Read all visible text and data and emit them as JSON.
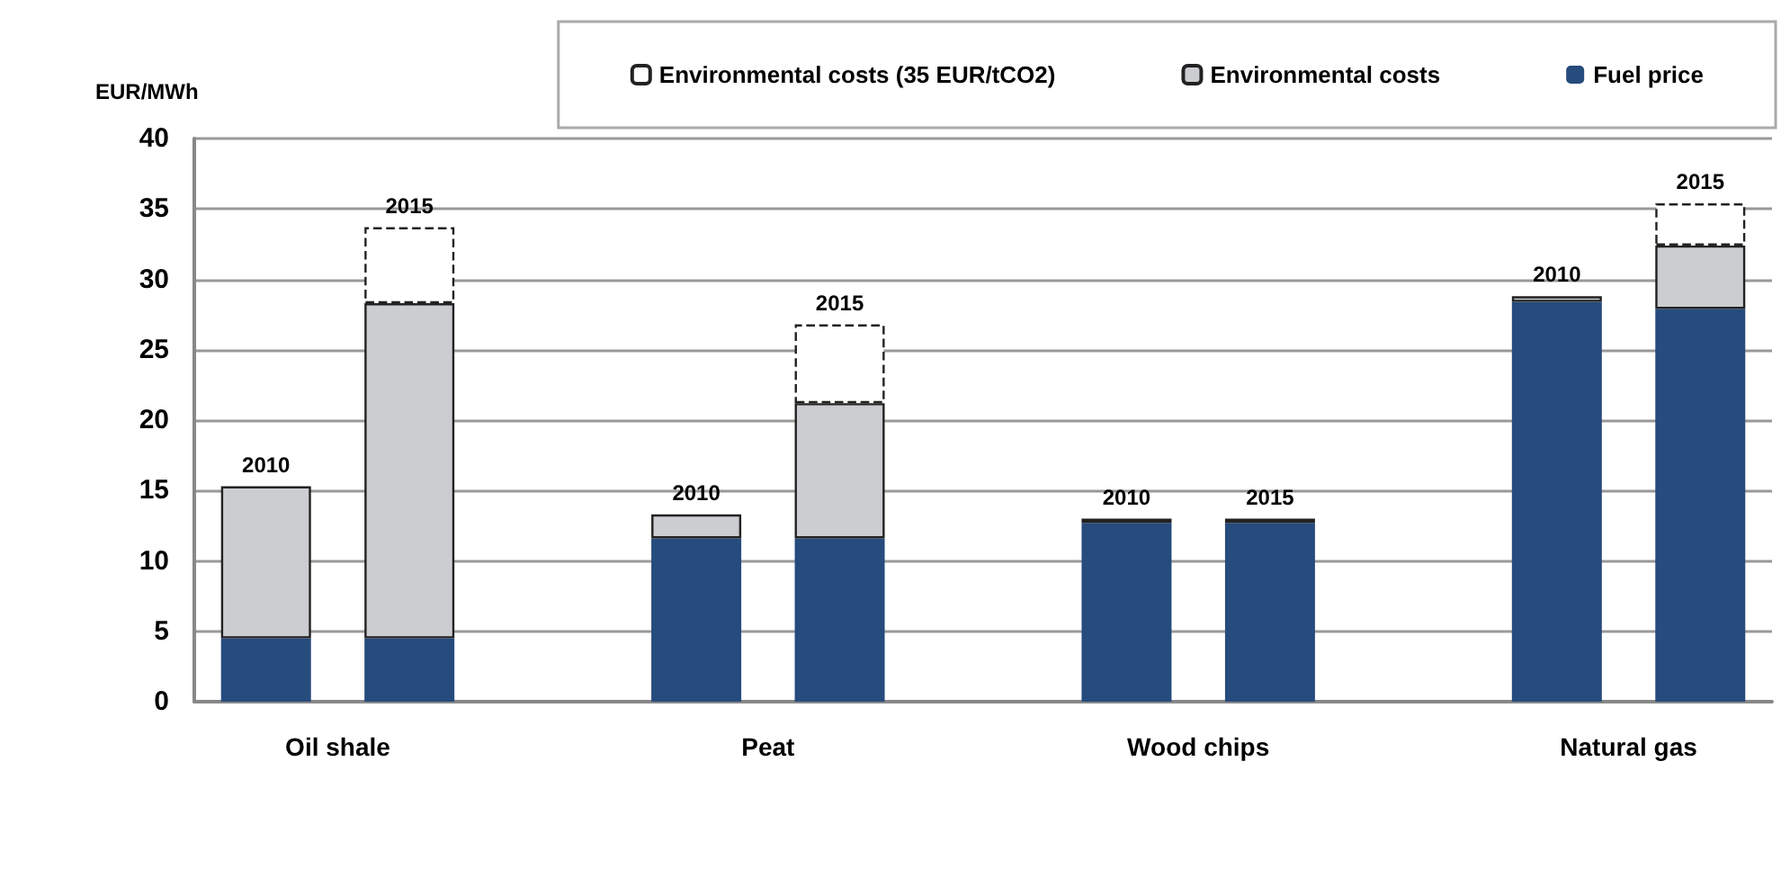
{
  "chart_data": {
    "type": "bar",
    "stacked": true,
    "ylabel": "EUR/MWh",
    "categories": [
      "2010",
      "2015",
      null,
      "2010",
      "2015",
      null,
      "2010",
      "2015",
      null,
      "2010",
      "2015"
    ],
    "series": [
      {
        "name": "Fuel price",
        "color": "#264b7d",
        "values": [
          4.5,
          4.5,
          null,
          11.6,
          11.6,
          null,
          12.7,
          12.7,
          null,
          28.4,
          27.9
        ]
      },
      {
        "name": "Environmental costs",
        "color": "#cccdd0",
        "values": [
          10.8,
          23.8,
          null,
          1.7,
          9.6,
          null,
          0.3,
          0.3,
          null,
          0.4,
          4.5
        ]
      },
      {
        "name": "Environmental costs (35 EUR/tCO2)",
        "color": "#ffffff",
        "line_style": "dashed",
        "values": [
          null,
          5.4,
          null,
          null,
          5.6,
          null,
          null,
          null,
          null,
          null,
          3.0
        ]
      }
    ],
    "annotations": [
      "Oil shale",
      "Peat",
      "Wood chips",
      "Natural gas"
    ],
    "ylim": [
      0,
      40
    ],
    "yticks": [
      0,
      5,
      10,
      15,
      20,
      25,
      30,
      35,
      40
    ],
    "grid": "y",
    "legend": "top right"
  }
}
